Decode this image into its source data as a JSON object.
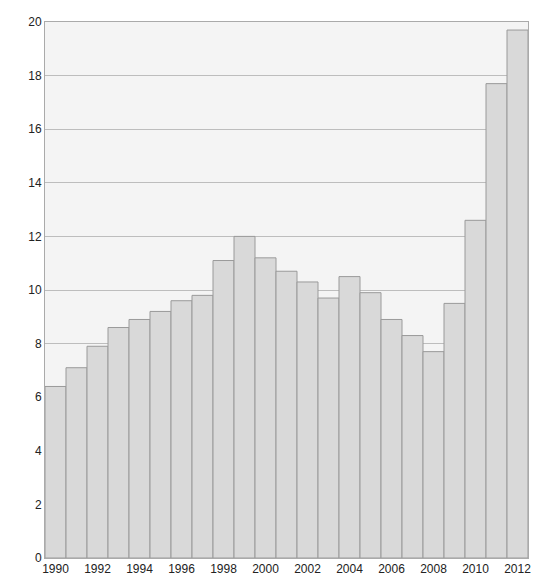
{
  "chart_data": {
    "type": "bar",
    "categories": [
      "1990",
      null,
      "1992",
      null,
      "1994",
      null,
      "1996",
      null,
      "1998",
      null,
      "2000",
      null,
      "2002",
      null,
      "2004",
      null,
      "2006",
      null,
      "2008",
      null,
      "2010",
      null,
      "2012"
    ],
    "values": [
      6.4,
      7.1,
      7.9,
      8.6,
      8.9,
      9.2,
      9.6,
      9.8,
      11.1,
      12.0,
      11.2,
      10.7,
      10.3,
      9.7,
      10.5,
      9.9,
      8.9,
      8.3,
      7.7,
      9.5,
      12.6,
      17.7,
      19.7
    ],
    "color": "#d9d9d9",
    "ylim": [
      0,
      20
    ],
    "yticks": [
      0,
      2,
      4,
      6,
      8,
      10,
      12,
      14,
      16,
      18,
      20
    ],
    "grid": true
  }
}
